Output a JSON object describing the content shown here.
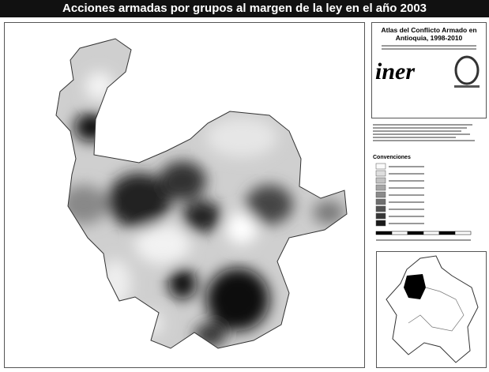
{
  "header": {
    "title": "Acciones armadas por grupos al margen de la ley en el año 2003"
  },
  "sidebar": {
    "atlas_title": [
      "Atlas del Conflicto Armado en",
      "Antioquia, 1998-2010"
    ],
    "logo": "iner",
    "legend_title": "Convenciones"
  }
}
